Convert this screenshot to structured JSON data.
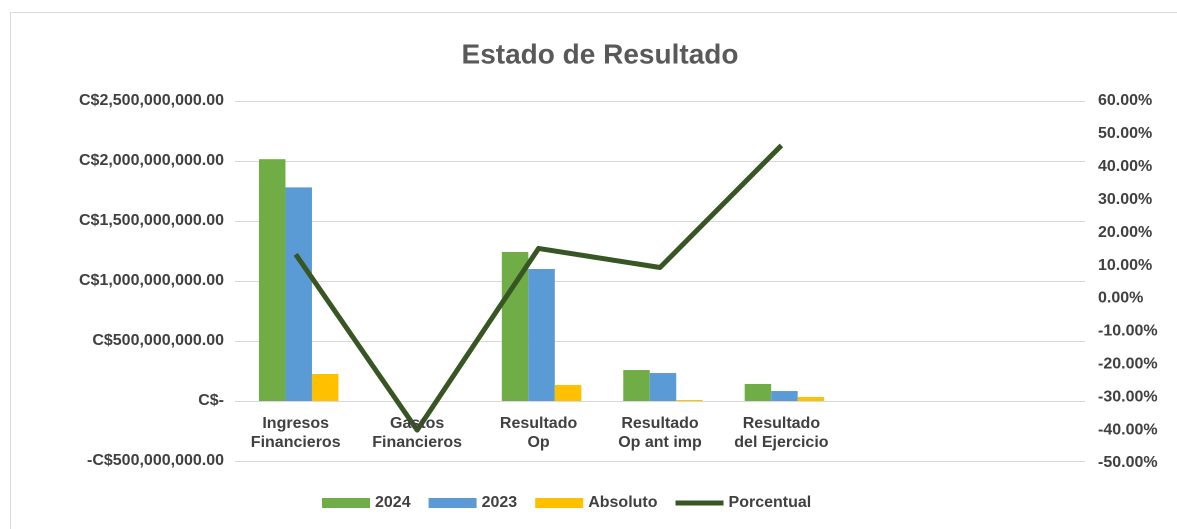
{
  "chart_data": {
    "type": "bar",
    "title": "Estado de Resultado",
    "categories": [
      "Ingresos\nFinancieros",
      "Gastos\nFinancieros",
      "Resultado\nOp",
      "Resultado\nOp ant imp",
      "Resultado\ndel Ejercicio",
      null,
      null
    ],
    "series": [
      {
        "name": "2024",
        "type": "bar",
        "color": "#70ad47",
        "values": [
          2015000000,
          0,
          1242000000,
          258000000,
          142000000,
          null,
          null
        ]
      },
      {
        "name": "2023",
        "type": "bar",
        "color": "#5b9bd5",
        "values": [
          1780000000,
          0,
          1100000000,
          233000000,
          83000000,
          null,
          null
        ]
      },
      {
        "name": "Absoluto",
        "type": "bar",
        "color": "#ffc000",
        "values": [
          225000000,
          0,
          133000000,
          8000000,
          33000000,
          null,
          null
        ]
      },
      {
        "name": "Porcentual",
        "type": "line",
        "axis": "y2",
        "color": "#375623",
        "values": [
          13.4,
          -40,
          15.2,
          9.4,
          46.5,
          null,
          null
        ]
      }
    ],
    "ylim": [
      -500000000,
      2500000000
    ],
    "yticks": [
      {
        "value": 2500000000,
        "label": "C$2,500,000,000.00"
      },
      {
        "value": 2000000000,
        "label": "C$2,000,000,000.00"
      },
      {
        "value": 1500000000,
        "label": "C$1,500,000,000.00"
      },
      {
        "value": 1000000000,
        "label": "C$1,000,000,000.00"
      },
      {
        "value": 500000000,
        "label": "C$500,000,000.00"
      },
      {
        "value": 0,
        "label": "C$-"
      },
      {
        "value": -500000000,
        "label": "-C$500,000,000.00"
      }
    ],
    "y2lim": [
      -50,
      60
    ],
    "y2ticks": [
      {
        "value": 60,
        "label": "60.00%"
      },
      {
        "value": 50,
        "label": "50.00%"
      },
      {
        "value": 40,
        "label": "40.00%"
      },
      {
        "value": 30,
        "label": "30.00%"
      },
      {
        "value": 20,
        "label": "20.00%"
      },
      {
        "value": 10,
        "label": "10.00%"
      },
      {
        "value": 0,
        "label": "0.00%"
      },
      {
        "value": -10,
        "label": "-10.00%"
      },
      {
        "value": -20,
        "label": "-20.00%"
      },
      {
        "value": -30,
        "label": "-30.00%"
      },
      {
        "value": -40,
        "label": "-40.00%"
      },
      {
        "value": -50,
        "label": "-50.00%"
      }
    ],
    "grid": true,
    "legend": "bottom"
  }
}
